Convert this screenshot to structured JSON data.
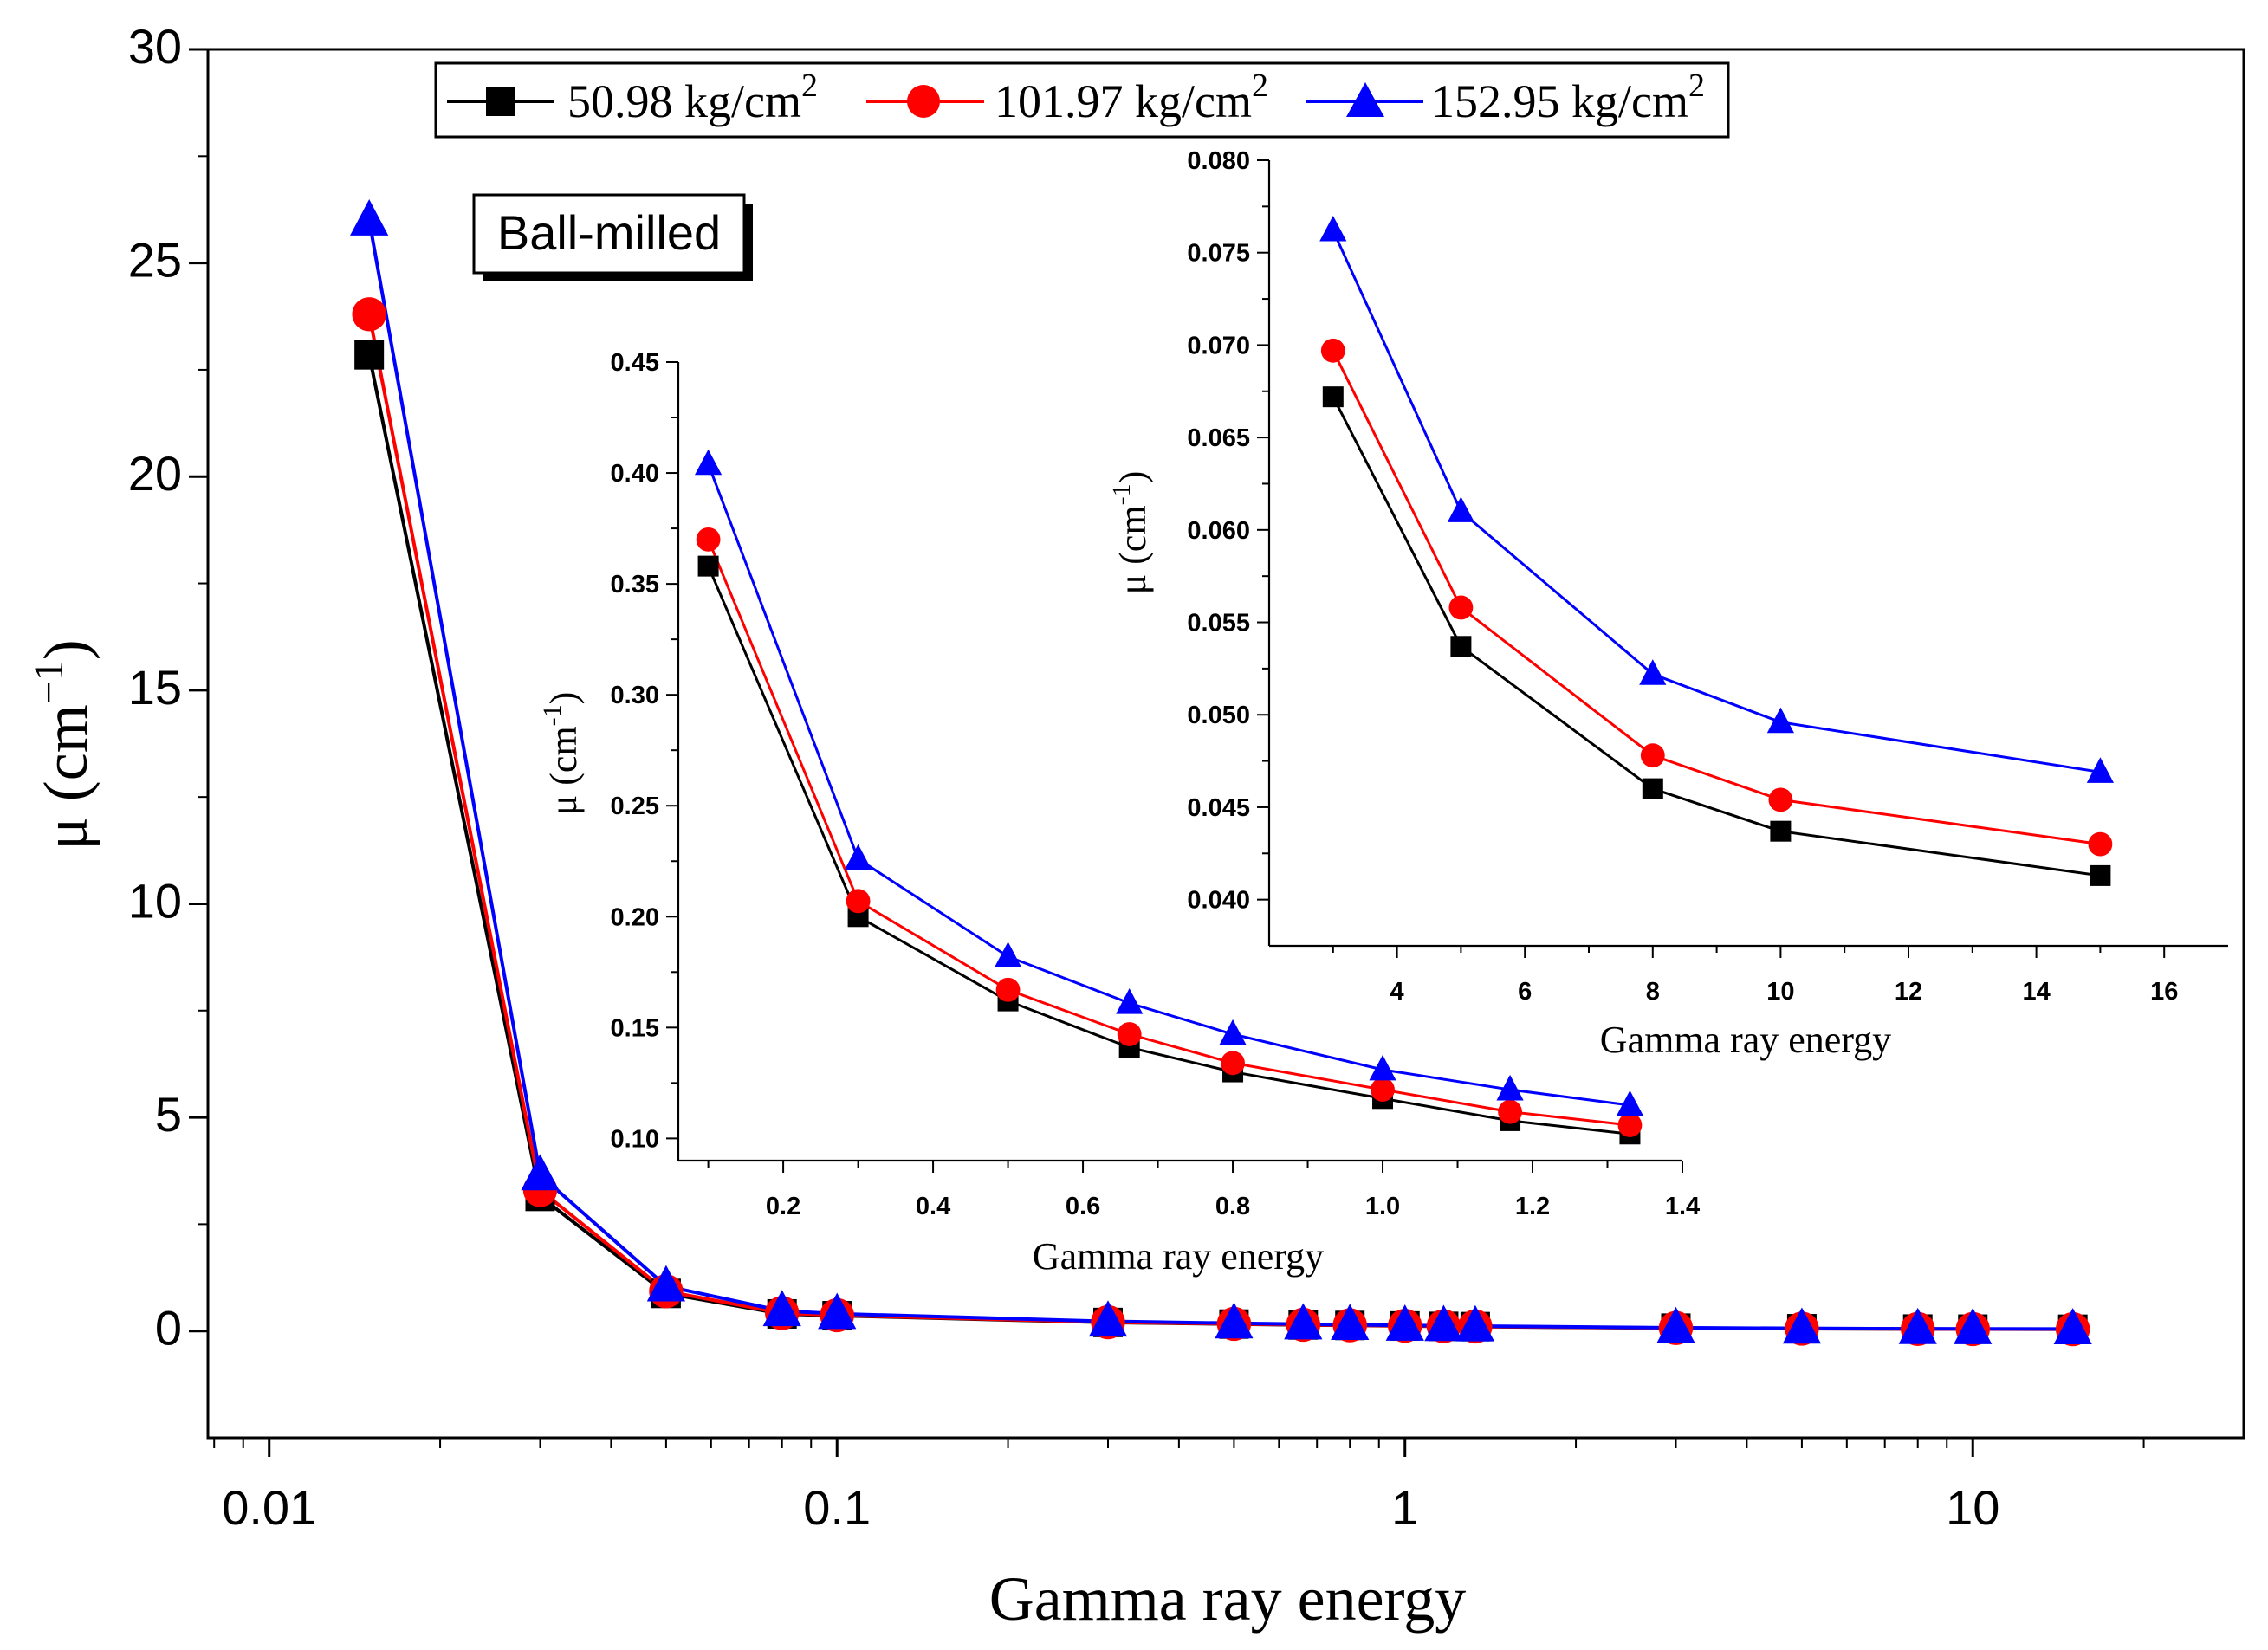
{
  "chart_data": [
    {
      "id": "main",
      "type": "line",
      "xscale": "log",
      "xlabel": "Gamma ray energy",
      "ylabel": "μ (cm",
      "ylabel_sup": "−1",
      "ylabel_close": ")",
      "xlim": [
        0.0078,
        30
      ],
      "ylim": [
        -2.5,
        30
      ],
      "xticks": [
        0.01,
        0.1,
        1,
        10
      ],
      "xtick_labels": [
        "0.01",
        "0.1",
        "1",
        "10"
      ],
      "yticks": [
        0,
        5,
        10,
        15,
        20,
        25,
        30
      ],
      "ytick_labels": [
        "0",
        "5",
        "10",
        "15",
        "20",
        "25",
        "30"
      ],
      "annotation": "Ball-milled",
      "x": [
        0.015,
        0.03,
        0.05,
        0.08,
        0.1,
        0.3,
        0.5,
        0.662,
        0.8,
        1,
        1.17,
        1.33,
        3,
        5,
        8,
        10,
        15
      ],
      "series": [
        {
          "name": "50.98 kg/cm",
          "sup": "2",
          "color": "#000000",
          "marker": "square",
          "values": [
            22.85,
            3.15,
            0.88,
            0.4,
            0.358,
            0.2,
            0.162,
            0.141,
            0.13,
            0.118,
            0.108,
            0.102,
            0.0672,
            0.0537,
            0.046,
            0.0437,
            0.0413
          ]
        },
        {
          "name": "101.97 kg/cm",
          "sup": "2",
          "color": "#ff0000",
          "marker": "circle",
          "values": [
            23.8,
            3.3,
            0.93,
            0.42,
            0.37,
            0.207,
            0.167,
            0.147,
            0.134,
            0.122,
            0.112,
            0.106,
            0.0697,
            0.0558,
            0.0478,
            0.0454,
            0.043
          ]
        },
        {
          "name": "152.95 kg/cm",
          "sup": "2",
          "color": "#0000ff",
          "marker": "triangle",
          "values": [
            26.0,
            3.65,
            1.05,
            0.47,
            0.404,
            0.226,
            0.182,
            0.161,
            0.147,
            0.131,
            0.122,
            0.115,
            0.0762,
            0.061,
            0.0522,
            0.0496,
            0.0469
          ]
        }
      ]
    },
    {
      "id": "inset1",
      "type": "line",
      "xlabel": "Gamma ray energy",
      "ylabel": "μ (cm",
      "ylabel_sup": "-1",
      "ylabel_close": ")",
      "xlim": [
        0.06,
        1.4
      ],
      "ylim": [
        0.09,
        0.45
      ],
      "xticks": [
        0.2,
        0.4,
        0.6,
        0.8,
        1.0,
        1.2,
        1.4
      ],
      "xtick_labels": [
        "0.2",
        "0.4",
        "0.6",
        "0.8",
        "1.0",
        "1.2",
        "1.4"
      ],
      "yticks": [
        0.1,
        0.15,
        0.2,
        0.25,
        0.3,
        0.35,
        0.4,
        0.45
      ],
      "ytick_labels": [
        "0.10",
        "0.15",
        "0.20",
        "0.25",
        "0.30",
        "0.35",
        "0.40",
        "0.45"
      ],
      "x": [
        0.1,
        0.3,
        0.5,
        0.662,
        0.8,
        1.0,
        1.17,
        1.33
      ],
      "series": [
        {
          "name": "50.98 kg/cm2",
          "color": "#000000",
          "marker": "square",
          "values": [
            0.358,
            0.2,
            0.162,
            0.141,
            0.13,
            0.118,
            0.108,
            0.102
          ]
        },
        {
          "name": "101.97 kg/cm2",
          "color": "#ff0000",
          "marker": "circle",
          "values": [
            0.37,
            0.207,
            0.167,
            0.147,
            0.134,
            0.122,
            0.112,
            0.106
          ]
        },
        {
          "name": "152.95 kg/cm2",
          "color": "#0000ff",
          "marker": "triangle",
          "values": [
            0.404,
            0.226,
            0.182,
            0.161,
            0.147,
            0.131,
            0.122,
            0.115
          ]
        }
      ]
    },
    {
      "id": "inset2",
      "type": "line",
      "xlabel": "Gamma ray energy",
      "ylabel": "μ (cm",
      "ylabel_sup": "-1",
      "ylabel_close": ")",
      "xlim": [
        2.0,
        17.0
      ],
      "ylim": [
        0.0375,
        0.08
      ],
      "xticks": [
        4,
        6,
        8,
        10,
        12,
        14,
        16
      ],
      "xtick_labels": [
        "4",
        "6",
        "8",
        "10",
        "12",
        "14",
        "16"
      ],
      "yticks": [
        0.04,
        0.045,
        0.05,
        0.055,
        0.06,
        0.065,
        0.07,
        0.075,
        0.08
      ],
      "ytick_labels": [
        "0.040",
        "0.045",
        "0.050",
        "0.055",
        "0.060",
        "0.065",
        "0.070",
        "0.075",
        "0.080"
      ],
      "x": [
        3,
        5,
        8,
        10,
        15
      ],
      "series": [
        {
          "name": "50.98 kg/cm2",
          "color": "#000000",
          "marker": "square",
          "values": [
            0.0672,
            0.0537,
            0.046,
            0.0437,
            0.0413
          ]
        },
        {
          "name": "101.97 kg/cm2",
          "color": "#ff0000",
          "marker": "circle",
          "values": [
            0.0697,
            0.0558,
            0.0478,
            0.0454,
            0.043
          ]
        },
        {
          "name": "152.95 kg/cm2",
          "color": "#0000ff",
          "marker": "triangle",
          "values": [
            0.0762,
            0.061,
            0.0522,
            0.0496,
            0.0469
          ]
        }
      ]
    }
  ]
}
